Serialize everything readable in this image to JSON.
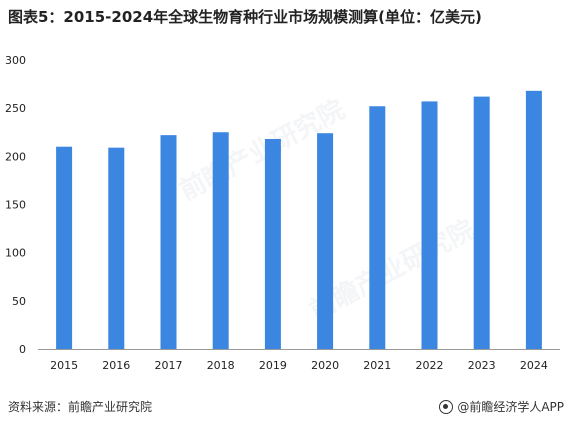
{
  "title": "图表5：2015-2024年全球生物育种行业市场规模测算(单位：亿美元)",
  "source": "资料来源：前瞻产业研究院",
  "brand": "@前瞻经济学人APP",
  "watermark": "前瞻产业研究院",
  "colors": {
    "bar": "#3b86e0",
    "axis": "#999999",
    "tick_label": "#222222"
  },
  "chart_data": {
    "type": "bar",
    "title": "图表5：2015-2024年全球生物育种行业市场规模测算(单位：亿美元)",
    "xlabel": "",
    "ylabel": "",
    "categories": [
      "2015",
      "2016",
      "2017",
      "2018",
      "2019",
      "2020",
      "2021",
      "2022",
      "2023",
      "2024"
    ],
    "values": [
      210,
      209,
      222,
      225,
      218,
      224,
      252,
      257,
      262,
      268
    ],
    "ylim": [
      0,
      300
    ],
    "yticks": [
      0,
      50,
      100,
      150,
      200,
      250,
      300
    ],
    "grid": false,
    "legend": "none"
  }
}
